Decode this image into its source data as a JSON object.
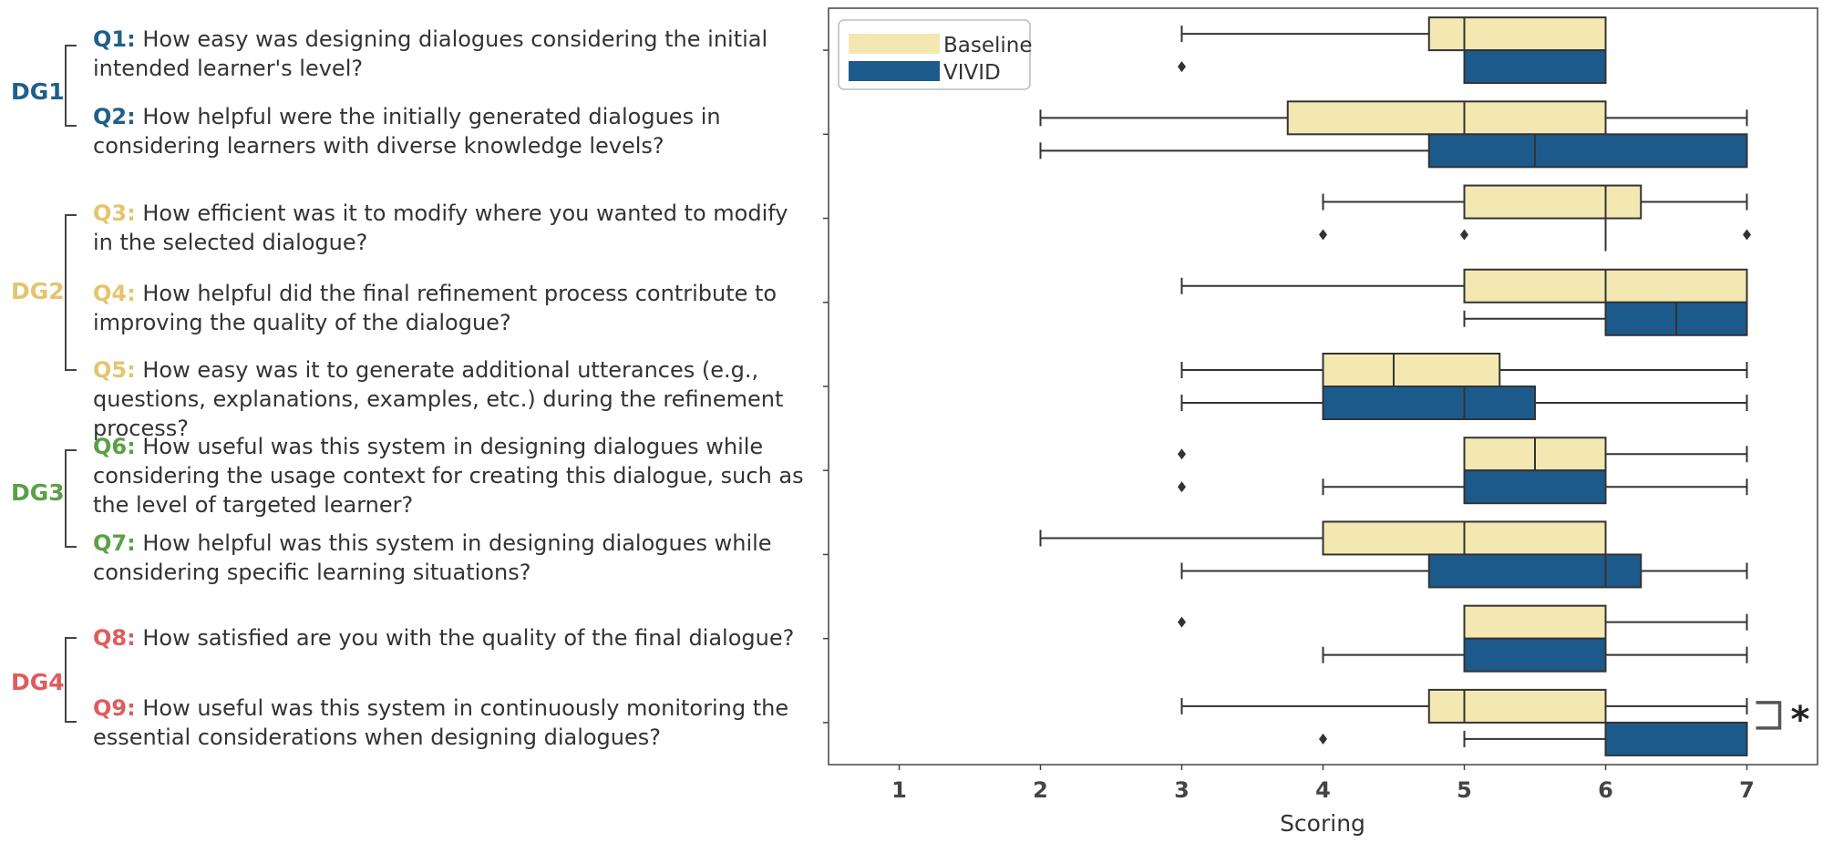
{
  "groups": [
    {
      "label": "DG1",
      "color": "#1f5f8b"
    },
    {
      "label": "DG2",
      "color": "#e3c56e"
    },
    {
      "label": "DG3",
      "color": "#5aa046"
    },
    {
      "label": "DG4",
      "color": "#e05c5c"
    }
  ],
  "questions": [
    {
      "id": "Q1:",
      "text": "How easy was designing dialogues considering the initial intended learner's level?"
    },
    {
      "id": "Q2:",
      "text": "How helpful were the initially generated dialogues  in considering learners with diverse knowledge levels?"
    },
    {
      "id": "Q3:",
      "text": "How efficient was it to modify where you wanted to modify in the selected dialogue?"
    },
    {
      "id": "Q4:",
      "text": "How helpful did the final refinement process contribute to improving the quality of the dialogue?"
    },
    {
      "id": "Q5:",
      "text": "How easy was it to generate additional utterances (e.g., questions, explanations, examples, etc.) during the  refinement process?"
    },
    {
      "id": "Q6:",
      "text": "How useful was this system in designing dialogues while considering the usage context for creating this dialogue, such as the level of targeted learner?"
    },
    {
      "id": "Q7:",
      "text": "How helpful was this system in designing dialogues while considering specific learning situations?"
    },
    {
      "id": "Q8:",
      "text": "How satisfied are you with the quality of the final dialogue?"
    },
    {
      "id": "Q9:",
      "text": "How useful was this system in continuously monitoring the essential considerations when designing dialogues?"
    }
  ],
  "chart_data": {
    "type": "boxplot",
    "orientation": "horizontal",
    "xlabel": "Scoring",
    "xlim": [
      0.5,
      7.5
    ],
    "xticks": [
      "1",
      "2",
      "3",
      "4",
      "5",
      "6",
      "7"
    ],
    "legend": {
      "position": "top-left",
      "entries": [
        "Baseline",
        "VIVID"
      ]
    },
    "series": [
      {
        "name": "Baseline",
        "color": "#f4e8b2",
        "boxes": [
          {
            "q": "Q1",
            "whislo": 3,
            "q1": 4.75,
            "med": 5,
            "q3": 6,
            "whishi": 6,
            "fliers": []
          },
          {
            "q": "Q2",
            "whislo": 2,
            "q1": 3.75,
            "med": 5,
            "q3": 6,
            "whishi": 7,
            "fliers": []
          },
          {
            "q": "Q3",
            "whislo": 4,
            "q1": 5,
            "med": 6,
            "q3": 6.25,
            "whishi": 7,
            "fliers": []
          },
          {
            "q": "Q4",
            "whislo": 3,
            "q1": 5,
            "med": 6,
            "q3": 7,
            "whishi": 7,
            "fliers": []
          },
          {
            "q": "Q5",
            "whislo": 3,
            "q1": 4,
            "med": 4.5,
            "q3": 5.25,
            "whishi": 7,
            "fliers": []
          },
          {
            "q": "Q6",
            "whislo": 5,
            "q1": 5,
            "med": 5.5,
            "q3": 6,
            "whishi": 7,
            "fliers": [
              3
            ]
          },
          {
            "q": "Q7",
            "whislo": 2,
            "q1": 4,
            "med": 5,
            "q3": 6,
            "whishi": 6,
            "fliers": []
          },
          {
            "q": "Q8",
            "whislo": 5,
            "q1": 5,
            "med": 5,
            "q3": 6,
            "whishi": 7,
            "fliers": [
              3
            ]
          },
          {
            "q": "Q9",
            "whislo": 3,
            "q1": 4.75,
            "med": 5,
            "q3": 6,
            "whishi": 7,
            "fliers": []
          }
        ]
      },
      {
        "name": "VIVID",
        "color": "#1c5a8c",
        "boxes": [
          {
            "q": "Q1",
            "whislo": 5,
            "q1": 5,
            "med": 5,
            "q3": 6,
            "whishi": 6,
            "fliers": [
              3
            ]
          },
          {
            "q": "Q2",
            "whislo": 2,
            "q1": 4.75,
            "med": 5.5,
            "q3": 7,
            "whishi": 7,
            "fliers": []
          },
          {
            "q": "Q3",
            "whislo": 6,
            "q1": 6,
            "med": 6,
            "q3": 6,
            "whishi": 6,
            "fliers": [
              4,
              5,
              7
            ]
          },
          {
            "q": "Q4",
            "whislo": 5,
            "q1": 6,
            "med": 6.5,
            "q3": 7,
            "whishi": 7,
            "fliers": []
          },
          {
            "q": "Q5",
            "whislo": 3,
            "q1": 4,
            "med": 5,
            "q3": 5.5,
            "whishi": 7,
            "fliers": []
          },
          {
            "q": "Q6",
            "whislo": 4,
            "q1": 5,
            "med": 5,
            "q3": 6,
            "whishi": 7,
            "fliers": [
              3
            ]
          },
          {
            "q": "Q7",
            "whislo": 3,
            "q1": 4.75,
            "med": 6,
            "q3": 6.25,
            "whishi": 7,
            "fliers": []
          },
          {
            "q": "Q8",
            "whislo": 4,
            "q1": 5,
            "med": 5,
            "q3": 6,
            "whishi": 7,
            "fliers": []
          },
          {
            "q": "Q9",
            "whislo": 5,
            "q1": 6,
            "med": 6,
            "q3": 7,
            "whishi": 7,
            "fliers": [
              4
            ]
          }
        ]
      }
    ],
    "annotations": [
      {
        "text": "*",
        "between": [
          "Q9 Baseline",
          "Q9 VIVID"
        ]
      }
    ]
  }
}
